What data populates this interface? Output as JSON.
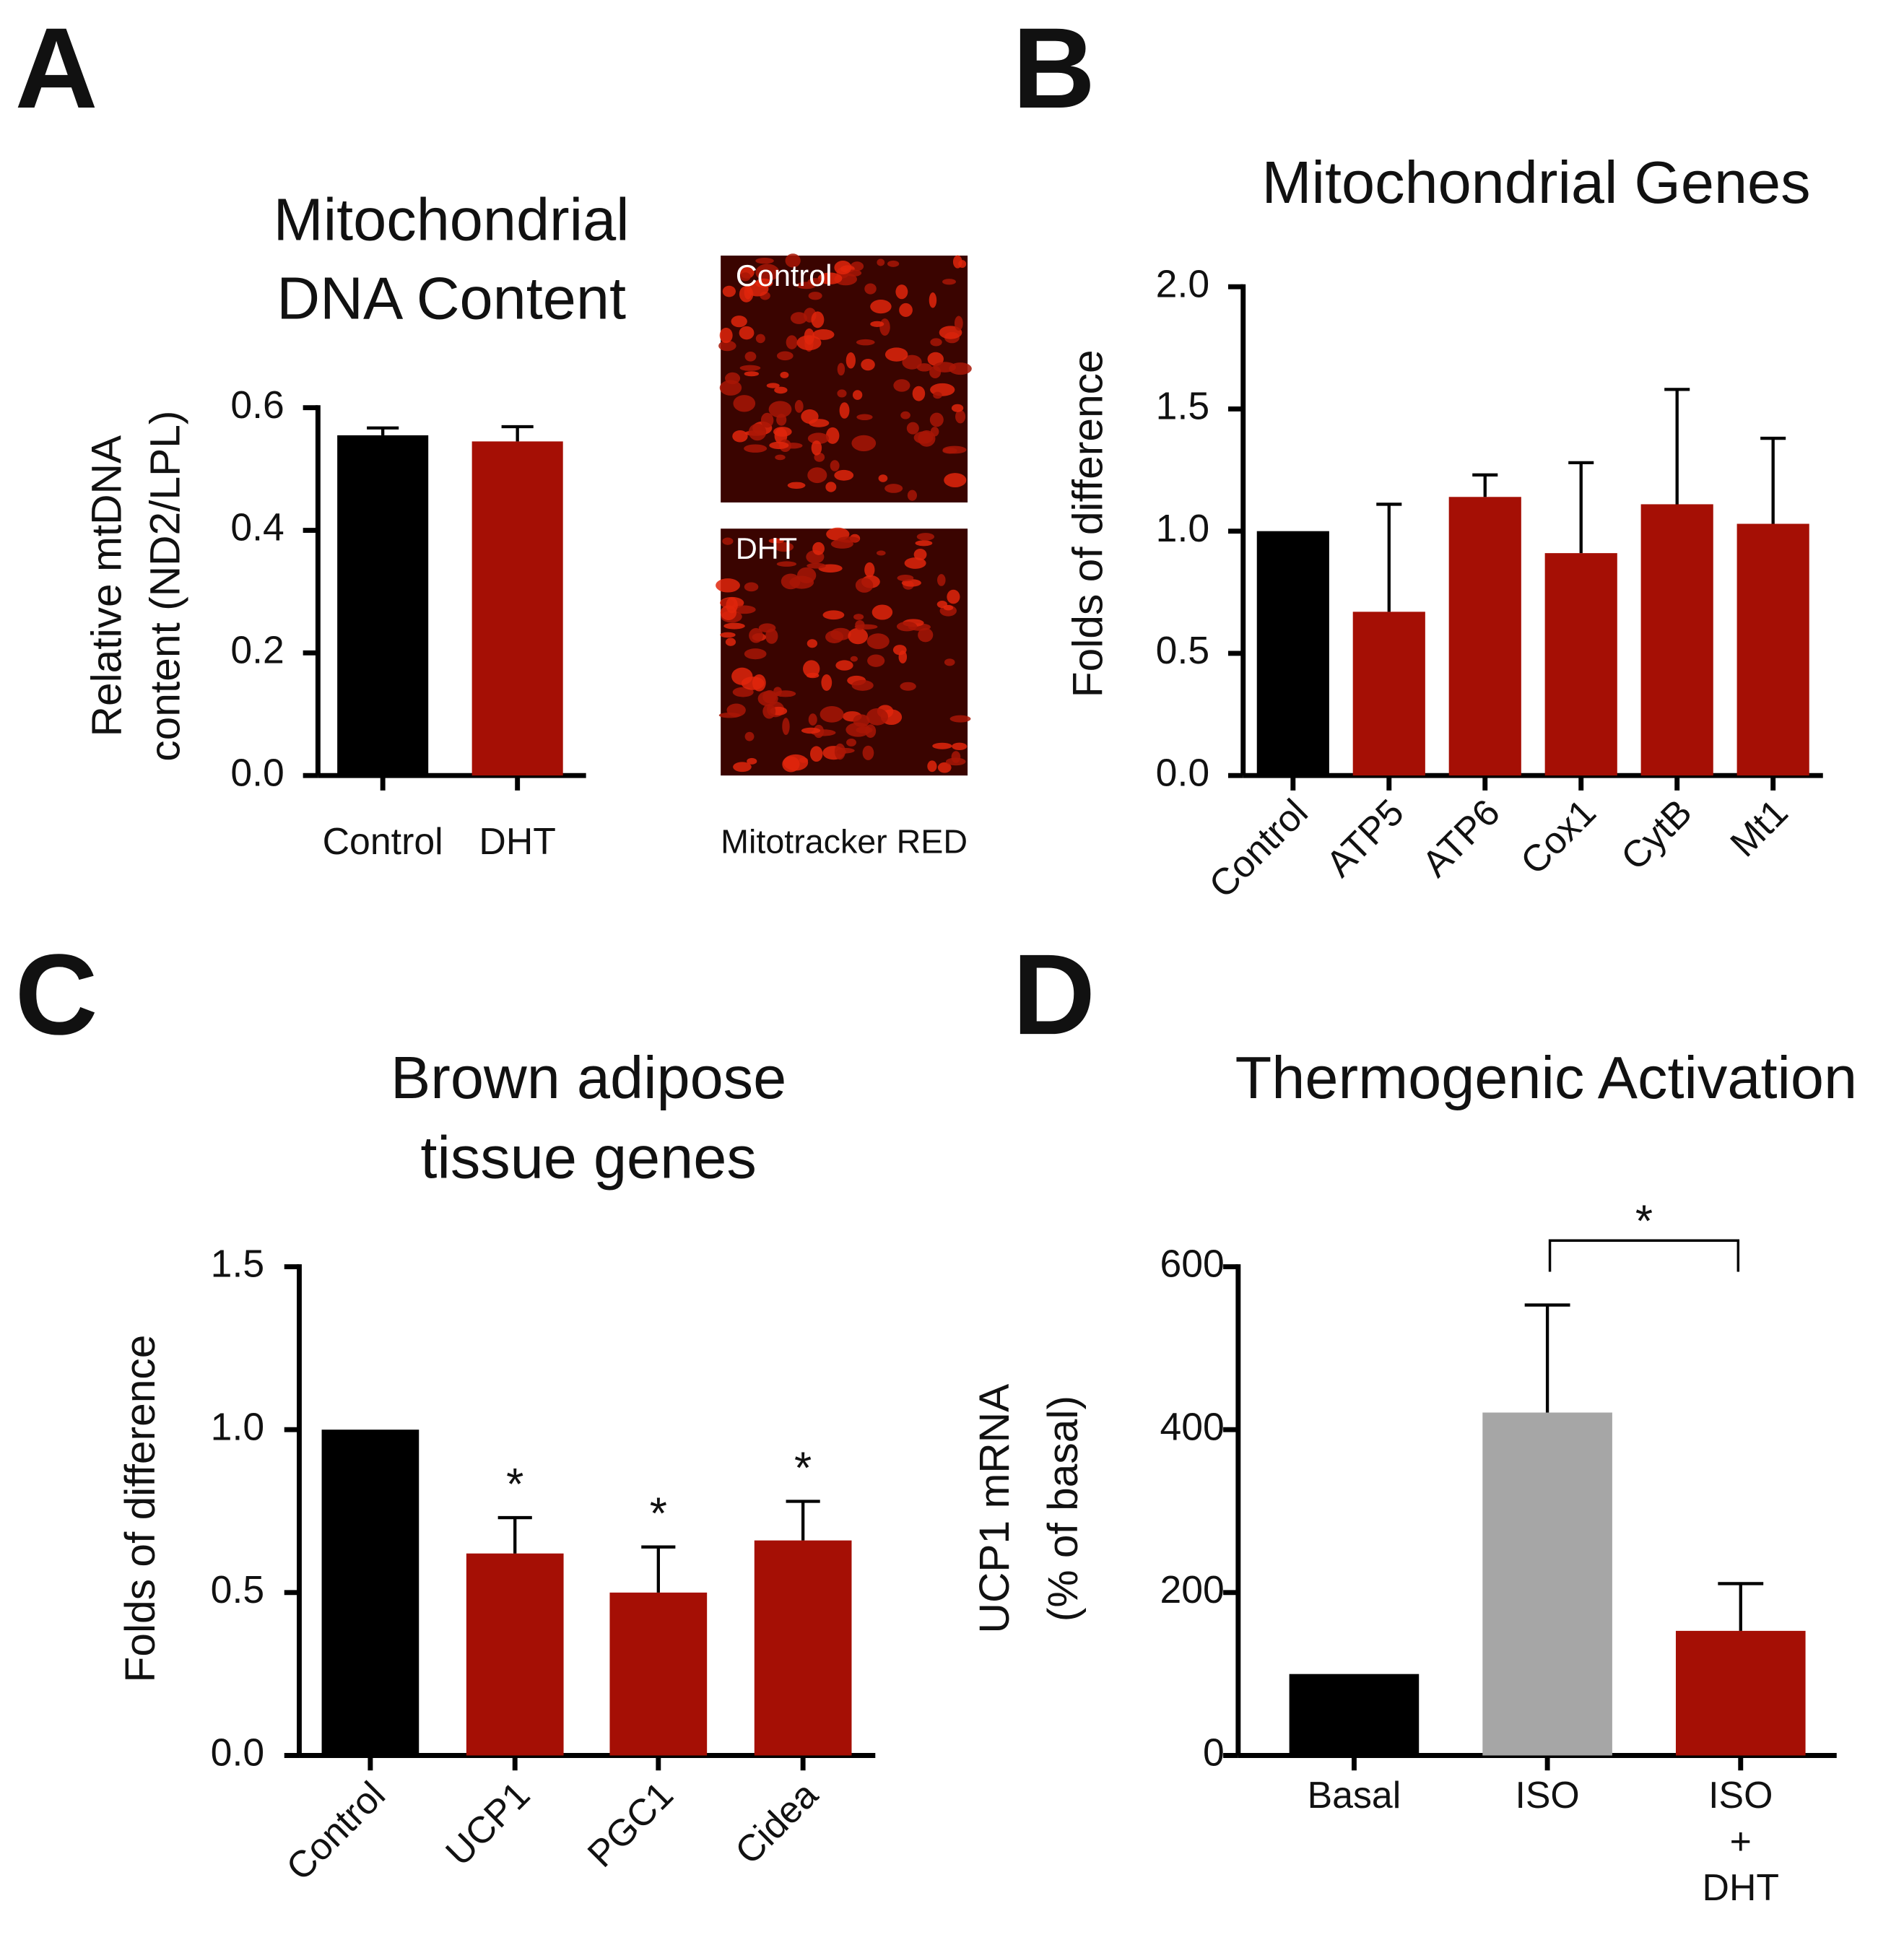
{
  "chart_data": [
    {
      "type": "bar",
      "panel": "A",
      "title": [
        "Mitochondrial",
        "DNA Content"
      ],
      "ylabel": [
        "Relative mtDNA",
        "content (ND2/LPL)"
      ],
      "categories": [
        "Control",
        "DHT"
      ],
      "values": [
        0.555,
        0.545
      ],
      "errors": [
        0.012,
        0.024
      ],
      "colors": [
        "#000000",
        "#a50f05"
      ],
      "ylim": [
        0,
        0.6
      ],
      "yticks": [
        {
          "value": 0,
          "label": "0.0"
        },
        0.2,
        0.4,
        0.6
      ],
      "images": [
        "Control",
        "DHT"
      ],
      "image_caption": "Mitotracker RED"
    },
    {
      "type": "bar",
      "panel": "B",
      "title": [
        "Mitochondrial Genes"
      ],
      "ylabel": [
        "Folds of difference"
      ],
      "categories": [
        "Control",
        "ATP5",
        "ATP6",
        "Cox1",
        "CytB",
        "Mt1"
      ],
      "values": [
        1.0,
        0.67,
        1.14,
        0.91,
        1.11,
        1.03
      ],
      "errors": [
        null,
        0.44,
        0.09,
        0.37,
        0.47,
        0.35
      ],
      "colors": [
        "#000000",
        "#a50f05",
        "#a50f05",
        "#a50f05",
        "#a50f05",
        "#a50f05"
      ],
      "ylim": [
        0,
        2.0
      ],
      "yticks": [
        {
          "value": 0,
          "label": "0.0"
        },
        0.5,
        {
          "value": 1,
          "label": "1.0"
        },
        1.5,
        {
          "value": 2,
          "label": "2.0"
        }
      ]
    },
    {
      "type": "bar",
      "panel": "C",
      "title": [
        "Brown adipose",
        "tissue genes"
      ],
      "ylabel": [
        "Folds of difference"
      ],
      "categories": [
        "Control",
        "UCP1",
        "PGC1",
        "Cidea"
      ],
      "values": [
        1.0,
        0.62,
        0.5,
        0.66
      ],
      "errors": [
        null,
        0.11,
        0.14,
        0.12
      ],
      "annotations": [
        null,
        "*",
        "*",
        "*"
      ],
      "colors": [
        "#000000",
        "#a50f05",
        "#a50f05",
        "#a50f05"
      ],
      "ylim": [
        0,
        1.5
      ],
      "yticks": [
        {
          "value": 0,
          "label": "0.0"
        },
        0.5,
        {
          "value": 1,
          "label": "1.0"
        },
        1.5
      ]
    },
    {
      "type": "bar",
      "panel": "D",
      "title": [
        "Thermogenic Activation"
      ],
      "ylabel": [
        "UCP1 mRNA",
        "(% of basal)"
      ],
      "categories": [
        "Basal",
        "ISO",
        "ISO\n+\nDHT"
      ],
      "values": [
        100,
        421,
        153
      ],
      "errors": [
        null,
        132,
        58
      ],
      "colors": [
        "#000000",
        "#a6a6a6",
        "#a50f05"
      ],
      "significance_bracket": "*",
      "ylim": [
        0,
        600
      ],
      "yticks": [
        0,
        200,
        400,
        600
      ]
    }
  ]
}
